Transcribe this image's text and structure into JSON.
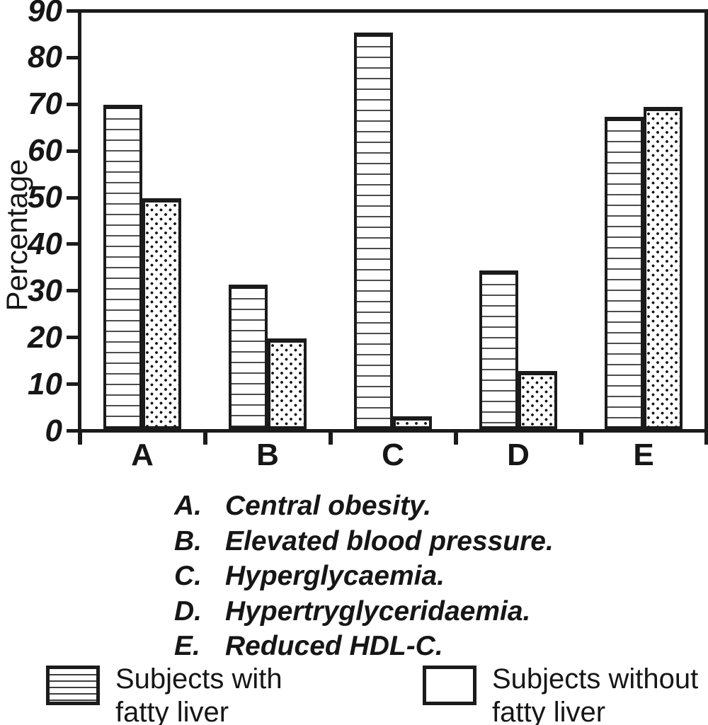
{
  "chart_data": {
    "type": "bar",
    "title": "",
    "xlabel": "",
    "ylabel": "Percentage",
    "ylim": [
      0,
      90
    ],
    "yticks": [
      0,
      10,
      20,
      30,
      40,
      50,
      60,
      70,
      80,
      90
    ],
    "grid": false,
    "legend_position": "bottom",
    "categories": [
      "A",
      "B",
      "C",
      "D",
      "E"
    ],
    "series": [
      {
        "name": "Subjects with fatty liver",
        "pattern": "horizontal-lines",
        "values": [
          69.5,
          31,
          85,
          34,
          67
        ]
      },
      {
        "name": "Subjects without fatty liver",
        "pattern": "dots",
        "values": [
          49.5,
          19.5,
          2.7,
          12.5,
          69
        ]
      }
    ]
  },
  "notes": [
    {
      "letter": "A.",
      "text": "Central obesity."
    },
    {
      "letter": "B.",
      "text": "Elevated blood pressure."
    },
    {
      "letter": "C.",
      "text": "Hyperglycaemia."
    },
    {
      "letter": "D.",
      "text": "Hypertryglyceridaemia."
    },
    {
      "letter": "E.",
      "text": "Reduced HDL-C."
    }
  ],
  "legend": [
    {
      "label": "Subjects with\nfatty liver",
      "pattern": "horizontal-lines"
    },
    {
      "label": "Subjects without\nfatty liver",
      "pattern": "dots"
    }
  ],
  "colors": {
    "ink": "#1b1b1b",
    "background": "#ffffff"
  }
}
